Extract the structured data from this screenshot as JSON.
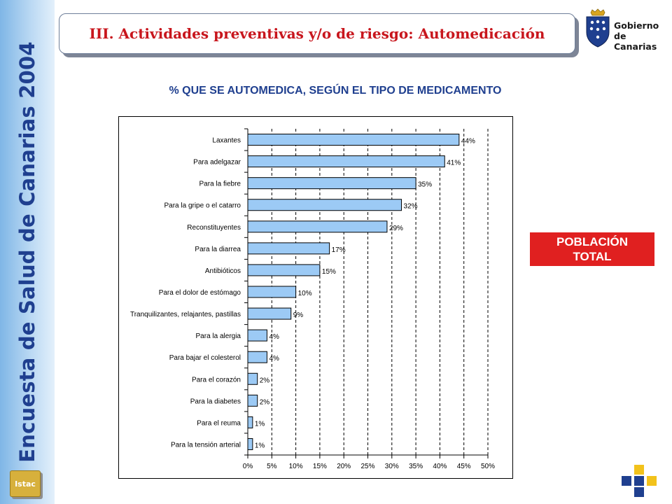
{
  "sidebar": {
    "title": "Encuesta de Salud de Canarias 2004",
    "logo_label": "Istac"
  },
  "header": {
    "title": "III. Actividades preventivas y/o de riesgo: Automedicación"
  },
  "government_logo": {
    "line1": "Gobierno",
    "line2": "de Canarias"
  },
  "subtitle": "% QUE SE AUTOMEDICA, SEGÚN EL TIPO DE MEDICAMENTO",
  "badge": {
    "text": "POBLACIÓN\nTOTAL",
    "color": "#e02020"
  },
  "colors": {
    "bar_fill": "#9ccaf5",
    "title_red": "#c8161d",
    "sidebar_text": "#1f3f8f"
  },
  "chart_data": {
    "type": "bar",
    "orientation": "horizontal",
    "categories": [
      "Laxantes",
      "Para adelgazar",
      "Para la fiebre",
      "Para la gripe o el catarro",
      "Reconstituyentes",
      "Para la diarrea",
      "Antibióticos",
      "Para el dolor de estómago",
      "Tranquilizantes, relajantes, pastillas",
      "Para la alergia",
      "Para bajar el colesterol",
      "Para el corazón",
      "Para la diabetes",
      "Para el reuma",
      "Para la tensión arterial"
    ],
    "values": [
      44,
      41,
      35,
      32,
      29,
      17,
      15,
      10,
      9,
      4,
      4,
      2,
      2,
      1,
      1
    ],
    "value_labels": [
      "44%",
      "41%",
      "35%",
      "32%",
      "29%",
      "17%",
      "15%",
      "10%",
      "9%",
      "4%",
      "4%",
      "2%",
      "2%",
      "1%",
      "1%"
    ],
    "xlim": [
      0,
      50
    ],
    "xticks": [
      0,
      5,
      10,
      15,
      20,
      25,
      30,
      35,
      40,
      45,
      50
    ],
    "xtick_labels": [
      "0%",
      "5%",
      "10%",
      "15%",
      "20%",
      "25%",
      "30%",
      "35%",
      "40%",
      "45%",
      "50%"
    ],
    "grid": "vertical dashed",
    "legend": "none"
  }
}
